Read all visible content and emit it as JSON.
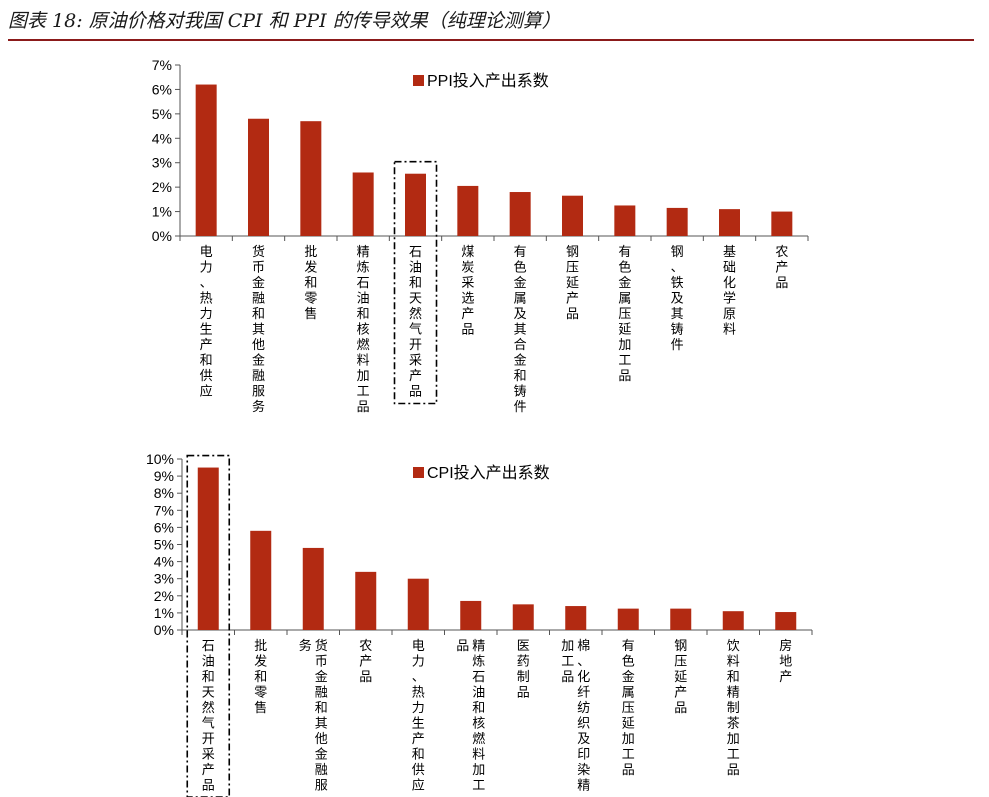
{
  "figure_title": "图表 18: 原油价格对我国 CPI 和 PPI 的传导效果（纯理论测算）",
  "colors": {
    "bar": "#b22a12",
    "title_rule": "#8b1a1a",
    "axis": "#555555"
  },
  "chart_data": [
    {
      "type": "bar",
      "legend": "PPI投入产出系数",
      "legend_position": "top-right",
      "ylim": [
        0,
        7
      ],
      "y_ticks": [
        "0%",
        "1%",
        "2%",
        "3%",
        "4%",
        "5%",
        "6%",
        "7%"
      ],
      "categories": [
        "电力、热力生产和供应",
        "货币金融和其他金融服务",
        "批发和零售",
        "精炼石油和核燃料加工品",
        "石油和天然气开采产品",
        "煤炭采选产品",
        "有色金属及其合金和铸件",
        "钢压延产品",
        "有色金属压延加工品",
        "钢、铁及其铸件",
        "基础化学原料",
        "农产品"
      ],
      "series": [
        {
          "name": "PPI投入产出系数",
          "values": [
            6.2,
            4.8,
            4.7,
            2.6,
            2.55,
            2.05,
            1.8,
            1.65,
            1.25,
            1.15,
            1.1,
            1.0
          ]
        }
      ],
      "highlight_index": 4
    },
    {
      "type": "bar",
      "legend": "CPI投入产出系数",
      "legend_position": "top-right",
      "ylim": [
        0,
        10
      ],
      "y_ticks": [
        "0%",
        "1%",
        "2%",
        "3%",
        "4%",
        "5%",
        "6%",
        "7%",
        "8%",
        "9%",
        "10%"
      ],
      "categories": [
        "石油和天然气开采产品",
        "批发和零售",
        "货币金融和其他金融服务",
        "农产品",
        "电力、热力生产和供应",
        "精炼石油和核燃料加工品",
        "医药制品",
        "棉、化纤纺织及印染精加工品",
        "有色金属压延加工品",
        "钢压延产品",
        "饮料和精制茶加工品",
        "房地产"
      ],
      "series": [
        {
          "name": "CPI投入产出系数",
          "values": [
            9.5,
            5.8,
            4.8,
            3.4,
            3.0,
            1.7,
            1.5,
            1.4,
            1.25,
            1.25,
            1.1,
            1.05
          ]
        }
      ],
      "highlight_index": 0
    }
  ]
}
